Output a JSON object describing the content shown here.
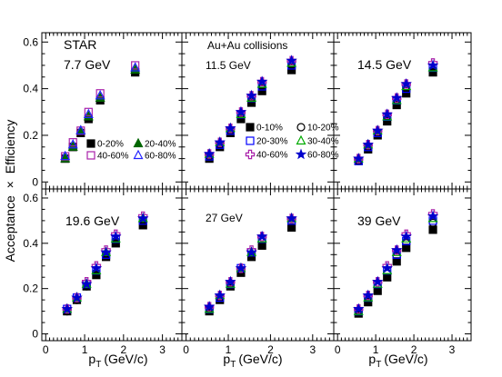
{
  "chart_data": {
    "type": "scatter",
    "y_axis_label": [
      "Acceptance",
      "×",
      "Efficiency"
    ],
    "x_axis_label": {
      "main": "p",
      "sub": "T",
      "unit": "(GeV/c)"
    },
    "xlim": [
      -0.1,
      3.5
    ],
    "ylim": [
      -0.03,
      0.64
    ],
    "x_ticks": [
      "0",
      "1",
      "2",
      "3"
    ],
    "y_ticks": [
      "0",
      "0.2",
      "0.4",
      "0.6"
    ],
    "series_styles": {
      "c0_10": {
        "marker": "square",
        "filled": true,
        "color": "#000000"
      },
      "c10_20": {
        "marker": "circle",
        "filled": false,
        "color": "#000000"
      },
      "c20_30": {
        "marker": "square",
        "filled": false,
        "color": "#0000ff"
      },
      "c20_40": {
        "marker": "triangle",
        "filled": true,
        "color": "#006600"
      },
      "c30_40": {
        "marker": "triangle",
        "filled": false,
        "color": "#00aa00"
      },
      "c40_60": {
        "marker": "square",
        "filled": false,
        "color": "#aa22aa"
      },
      "c40_80": {
        "marker": "cross",
        "filled": false,
        "color": "#aa22aa"
      },
      "c60_80": {
        "marker": "triangle",
        "filled": false,
        "color": "#2222ff"
      },
      "c60_80s": {
        "marker": "star",
        "filled": true,
        "color": "#0000cc"
      }
    },
    "panels": [
      {
        "labels": [
          "STAR",
          "7.7 GeV"
        ],
        "x": [
          0.5,
          0.7,
          0.9,
          1.1,
          1.4,
          2.3
        ],
        "series": [
          {
            "name": "0-20%",
            "key": "c0_10",
            "values": [
              0.1,
              0.15,
              0.21,
              0.27,
              0.35,
              0.47
            ]
          },
          {
            "name": "20-40%",
            "key": "c20_40",
            "values": [
              0.1,
              0.15,
              0.22,
              0.28,
              0.36,
              0.48
            ]
          },
          {
            "name": "40-60%",
            "key": "c40_60",
            "values": [
              0.11,
              0.17,
              0.22,
              0.3,
              0.38,
              0.5
            ]
          },
          {
            "name": "60-80%",
            "key": "c60_80",
            "values": [
              0.11,
              0.16,
              0.22,
              0.29,
              0.37,
              0.49
            ]
          }
        ]
      },
      {
        "labels": [
          "Au+Au collisions",
          "11.5 GeV"
        ],
        "x": [
          0.55,
          0.8,
          1.05,
          1.3,
          1.55,
          1.8,
          2.5
        ],
        "series": [
          {
            "name": "0-10%",
            "key": "c0_10",
            "values": [
              0.1,
              0.15,
              0.21,
              0.27,
              0.34,
              0.39,
              0.48
            ]
          },
          {
            "name": "10-20%",
            "key": "c10_20",
            "values": [
              0.11,
              0.16,
              0.22,
              0.28,
              0.35,
              0.4,
              0.49
            ]
          },
          {
            "name": "20-30%",
            "key": "c20_30",
            "values": [
              0.11,
              0.16,
              0.22,
              0.29,
              0.36,
              0.41,
              0.5
            ]
          },
          {
            "name": "30-40%",
            "key": "c30_40",
            "values": [
              0.12,
              0.17,
              0.23,
              0.29,
              0.36,
              0.42,
              0.51
            ]
          },
          {
            "name": "40-60%",
            "key": "c40_80",
            "values": [
              0.12,
              0.17,
              0.23,
              0.3,
              0.37,
              0.43,
              0.52
            ]
          },
          {
            "name": "60-80%",
            "key": "c60_80s",
            "values": [
              0.12,
              0.17,
              0.23,
              0.3,
              0.37,
              0.43,
              0.52
            ]
          }
        ]
      },
      {
        "labels": [
          "14.5 GeV"
        ],
        "x": [
          0.55,
          0.8,
          1.05,
          1.3,
          1.55,
          1.8,
          2.5
        ],
        "series": [
          {
            "name": "0-10%",
            "key": "c0_10",
            "values": [
              0.09,
              0.14,
              0.2,
              0.26,
              0.33,
              0.38,
              0.47
            ]
          },
          {
            "name": "10-20%",
            "key": "c10_20",
            "values": [
              0.09,
              0.15,
              0.21,
              0.27,
              0.34,
              0.39,
              0.48
            ]
          },
          {
            "name": "20-30%",
            "key": "c20_30",
            "values": [
              0.09,
              0.15,
              0.21,
              0.28,
              0.35,
              0.4,
              0.49
            ]
          },
          {
            "name": "30-40%",
            "key": "c30_40",
            "values": [
              0.1,
              0.16,
              0.22,
              0.28,
              0.35,
              0.41,
              0.49
            ]
          },
          {
            "name": "40-60%",
            "key": "c40_80",
            "values": [
              0.1,
              0.16,
              0.22,
              0.29,
              0.36,
              0.42,
              0.51
            ]
          },
          {
            "name": "60-80%",
            "key": "c60_80s",
            "values": [
              0.1,
              0.16,
              0.22,
              0.29,
              0.36,
              0.42,
              0.5
            ]
          }
        ]
      },
      {
        "labels": [
          "19.6 GeV"
        ],
        "x": [
          0.55,
          0.8,
          1.05,
          1.3,
          1.55,
          1.8,
          2.5
        ],
        "series": [
          {
            "name": "0-10%",
            "key": "c0_10",
            "values": [
              0.1,
              0.15,
              0.21,
              0.26,
              0.34,
              0.4,
              0.48
            ]
          },
          {
            "name": "10-20%",
            "key": "c10_20",
            "values": [
              0.1,
              0.15,
              0.21,
              0.27,
              0.35,
              0.41,
              0.49
            ]
          },
          {
            "name": "20-30%",
            "key": "c20_30",
            "values": [
              0.11,
              0.16,
              0.22,
              0.28,
              0.35,
              0.42,
              0.5
            ]
          },
          {
            "name": "30-40%",
            "key": "c30_40",
            "values": [
              0.11,
              0.16,
              0.22,
              0.28,
              0.36,
              0.42,
              0.51
            ]
          },
          {
            "name": "40-60%",
            "key": "c40_80",
            "values": [
              0.11,
              0.16,
              0.23,
              0.3,
              0.37,
              0.44,
              0.52
            ]
          },
          {
            "name": "60-80%",
            "key": "c60_80s",
            "values": [
              0.11,
              0.16,
              0.22,
              0.29,
              0.36,
              0.43,
              0.51
            ]
          }
        ]
      },
      {
        "labels": [
          "27 GeV"
        ],
        "x": [
          0.55,
          0.8,
          1.05,
          1.3,
          1.55,
          1.8,
          2.5
        ],
        "series": [
          {
            "name": "0-10%",
            "key": "c0_10",
            "values": [
              0.1,
              0.15,
              0.21,
              0.27,
              0.34,
              0.39,
              0.47
            ]
          },
          {
            "name": "10-20%",
            "key": "c10_20",
            "values": [
              0.11,
              0.16,
              0.22,
              0.28,
              0.35,
              0.41,
              0.49
            ]
          },
          {
            "name": "20-30%",
            "key": "c20_30",
            "values": [
              0.11,
              0.16,
              0.22,
              0.29,
              0.36,
              0.42,
              0.5
            ]
          },
          {
            "name": "30-40%",
            "key": "c30_40",
            "values": [
              0.11,
              0.17,
              0.22,
              0.29,
              0.36,
              0.42,
              0.51
            ]
          },
          {
            "name": "40-60%",
            "key": "c40_80",
            "values": [
              0.12,
              0.17,
              0.23,
              0.29,
              0.37,
              0.43,
              0.51
            ]
          },
          {
            "name": "60-80%",
            "key": "c60_80s",
            "values": [
              0.12,
              0.17,
              0.23,
              0.29,
              0.36,
              0.43,
              0.51
            ]
          }
        ]
      },
      {
        "labels": [
          "39 GeV"
        ],
        "x": [
          0.55,
          0.8,
          1.05,
          1.3,
          1.55,
          1.8,
          2.5
        ],
        "series": [
          {
            "name": "0-10%",
            "key": "c0_10",
            "values": [
              0.09,
              0.14,
              0.19,
              0.25,
              0.32,
              0.38,
              0.46
            ]
          },
          {
            "name": "10-20%",
            "key": "c10_20",
            "values": [
              0.1,
              0.15,
              0.21,
              0.27,
              0.34,
              0.4,
              0.49
            ]
          },
          {
            "name": "20-30%",
            "key": "c20_30",
            "values": [
              0.1,
              0.16,
              0.22,
              0.28,
              0.35,
              0.41,
              0.5
            ]
          },
          {
            "name": "30-40%",
            "key": "c30_40",
            "values": [
              0.1,
              0.16,
              0.22,
              0.28,
              0.36,
              0.42,
              0.51
            ]
          },
          {
            "name": "40-60%",
            "key": "c40_80",
            "values": [
              0.11,
              0.17,
              0.23,
              0.3,
              0.37,
              0.44,
              0.53
            ]
          },
          {
            "name": "60-80%",
            "key": "c60_80s",
            "values": [
              0.11,
              0.17,
              0.23,
              0.29,
              0.37,
              0.43,
              0.52
            ]
          }
        ]
      }
    ],
    "legends": [
      {
        "panel": 0,
        "rows": [
          [
            {
              "key": "c0_10",
              "label": "0-20%"
            },
            {
              "key": "c20_40",
              "label": "20-40%"
            }
          ],
          [
            {
              "key": "c40_60",
              "label": "40-60%"
            },
            {
              "key": "c60_80",
              "label": "60-80%"
            }
          ]
        ]
      },
      {
        "panel": 1,
        "rows": [
          [
            {
              "key": "c0_10",
              "label": "0-10%"
            },
            {
              "key": "c10_20",
              "label": "10-20%"
            }
          ],
          [
            {
              "key": "c20_30",
              "label": "20-30%"
            },
            {
              "key": "c30_40",
              "label": "30-40%"
            }
          ],
          [
            {
              "key": "c40_80",
              "label": "40-60%"
            },
            {
              "key": "c60_80s",
              "label": "60-80%"
            }
          ]
        ]
      }
    ]
  }
}
